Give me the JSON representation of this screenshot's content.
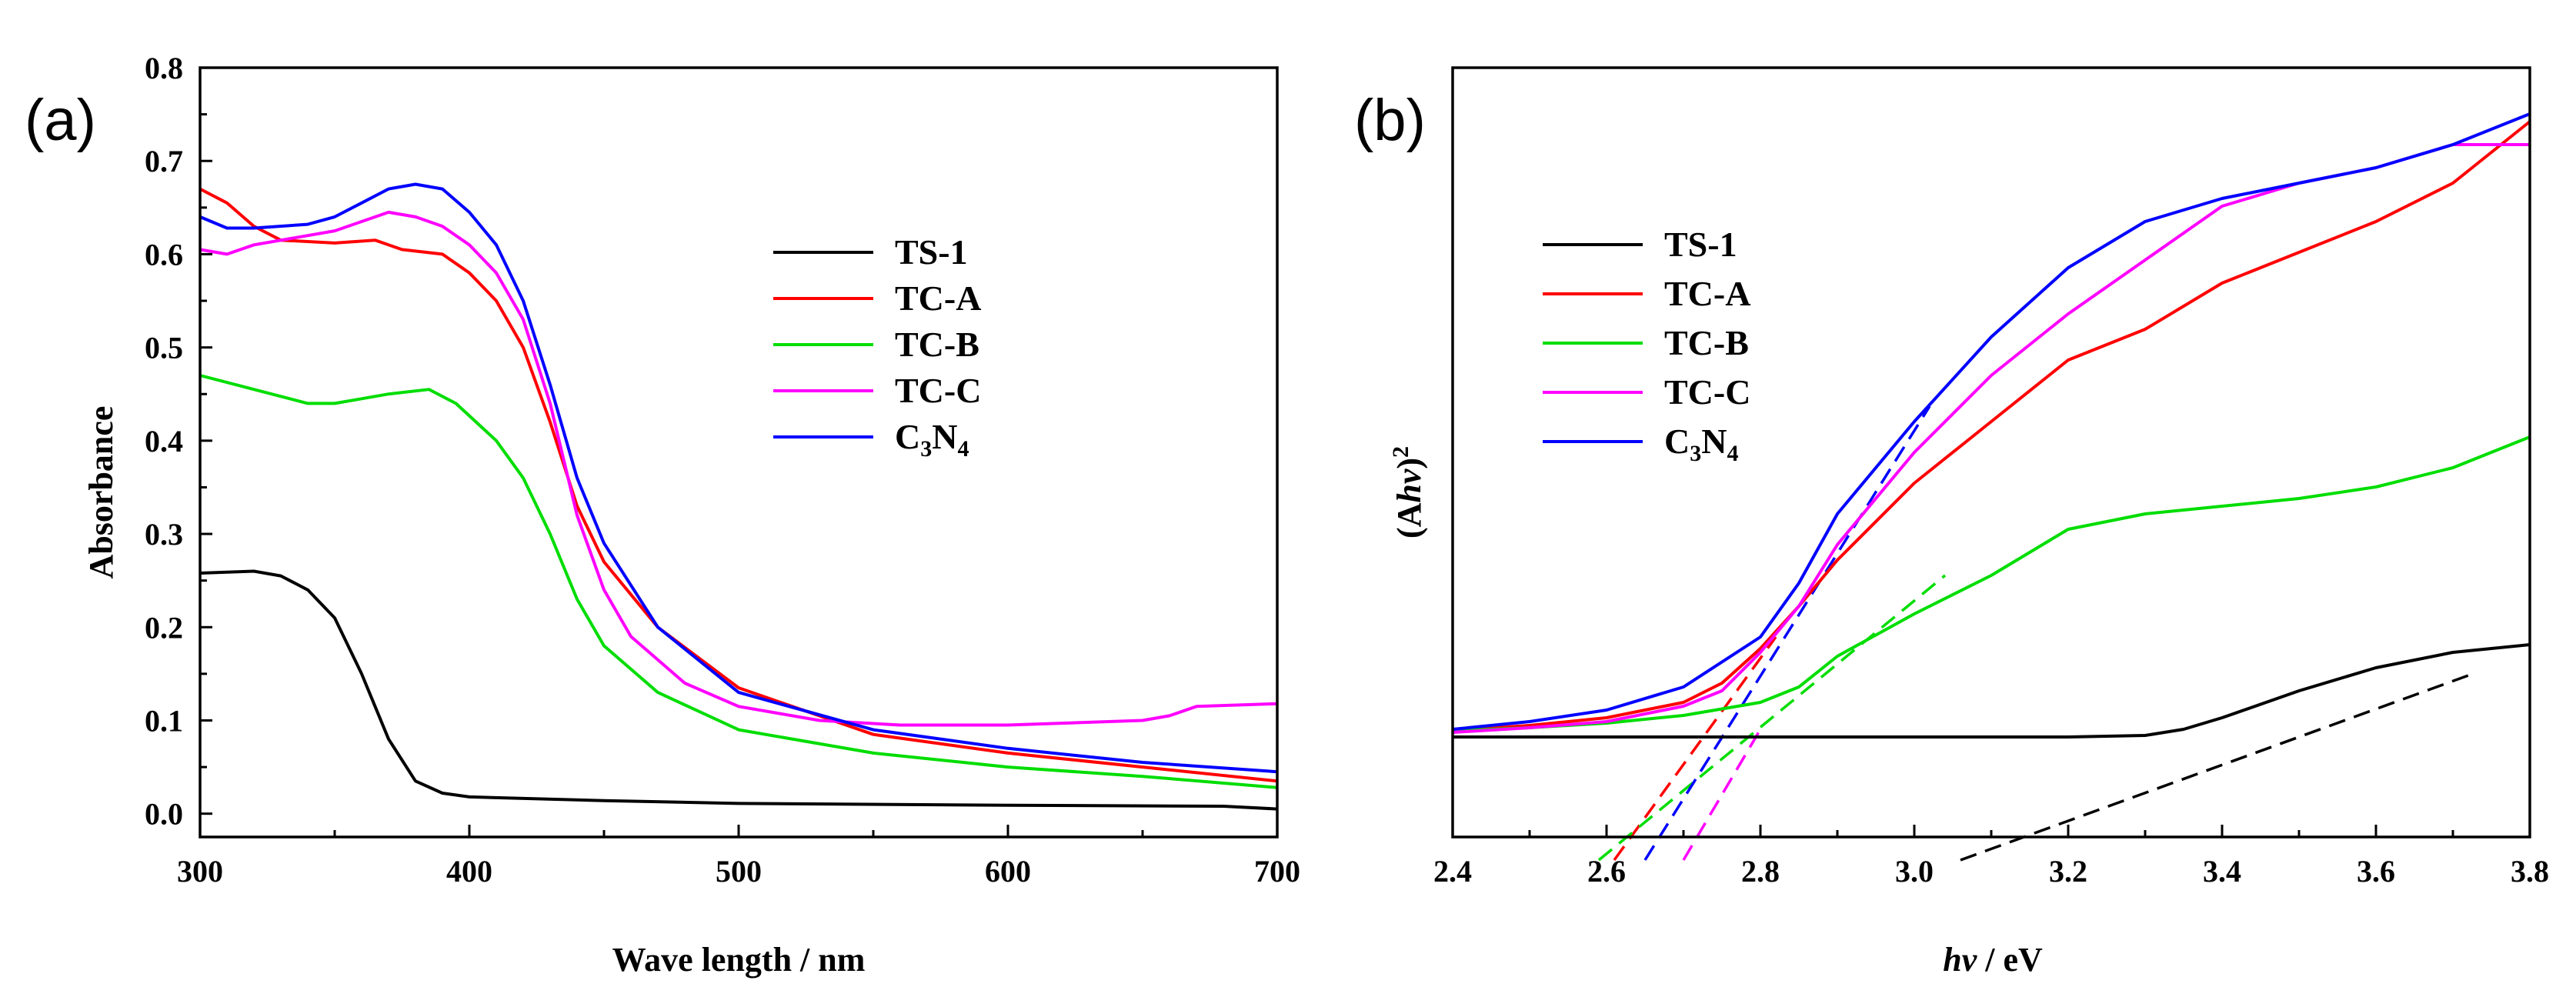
{
  "chart_data": [
    {
      "panel_label": "(a)",
      "type": "line",
      "title": "",
      "xlabel": "Wave length / nm",
      "ylabel": "Absorbance",
      "xlim": [
        300,
        700
      ],
      "ylim": [
        -0.025,
        0.8
      ],
      "xticks": [
        {
          "value": 300,
          "label": "300"
        },
        {
          "value": 400,
          "label": "400"
        },
        {
          "value": 500,
          "label": "500"
        },
        {
          "value": 600,
          "label": "600"
        },
        {
          "value": 700,
          "label": "700"
        }
      ],
      "yticks": [
        {
          "value": 0.0,
          "label": "0.0"
        },
        {
          "value": 0.1,
          "label": "0.1"
        },
        {
          "value": 0.2,
          "label": "0.2"
        },
        {
          "value": 0.3,
          "label": "0.3"
        },
        {
          "value": 0.4,
          "label": "0.4"
        },
        {
          "value": 0.5,
          "label": "0.5"
        },
        {
          "value": 0.6,
          "label": "0.6"
        },
        {
          "value": 0.7,
          "label": "0.7"
        },
        {
          "value": 0.8,
          "label": "0.8"
        }
      ],
      "legend": "center-right",
      "series": [
        {
          "name": "TS-1",
          "color": "#000000",
          "points": [
            [
              300,
              0.258
            ],
            [
              320,
              0.26
            ],
            [
              330,
              0.255
            ],
            [
              340,
              0.24
            ],
            [
              350,
              0.21
            ],
            [
              360,
              0.15
            ],
            [
              370,
              0.08
            ],
            [
              380,
              0.035
            ],
            [
              390,
              0.022
            ],
            [
              400,
              0.018
            ],
            [
              450,
              0.014
            ],
            [
              500,
              0.011
            ],
            [
              600,
              0.009
            ],
            [
              680,
              0.008
            ],
            [
              700,
              0.005
            ]
          ]
        },
        {
          "name": "TC-A",
          "color": "#ff0000",
          "points": [
            [
              300,
              0.67
            ],
            [
              310,
              0.655
            ],
            [
              320,
              0.63
            ],
            [
              330,
              0.615
            ],
            [
              350,
              0.612
            ],
            [
              365,
              0.615
            ],
            [
              375,
              0.605
            ],
            [
              390,
              0.6
            ],
            [
              400,
              0.58
            ],
            [
              410,
              0.55
            ],
            [
              420,
              0.5
            ],
            [
              430,
              0.42
            ],
            [
              440,
              0.33
            ],
            [
              450,
              0.27
            ],
            [
              470,
              0.2
            ],
            [
              500,
              0.135
            ],
            [
              550,
              0.085
            ],
            [
              600,
              0.065
            ],
            [
              650,
              0.05
            ],
            [
              700,
              0.035
            ]
          ]
        },
        {
          "name": "TC-B",
          "color": "#00dd00",
          "points": [
            [
              300,
              0.47
            ],
            [
              320,
              0.455
            ],
            [
              340,
              0.44
            ],
            [
              350,
              0.44
            ],
            [
              360,
              0.445
            ],
            [
              370,
              0.45
            ],
            [
              385,
              0.455
            ],
            [
              395,
              0.44
            ],
            [
              410,
              0.4
            ],
            [
              420,
              0.36
            ],
            [
              430,
              0.3
            ],
            [
              440,
              0.23
            ],
            [
              450,
              0.18
            ],
            [
              470,
              0.13
            ],
            [
              500,
              0.09
            ],
            [
              550,
              0.065
            ],
            [
              600,
              0.05
            ],
            [
              650,
              0.04
            ],
            [
              700,
              0.028
            ]
          ]
        },
        {
          "name": "TC-C",
          "color": "#ff00ff",
          "points": [
            [
              300,
              0.605
            ],
            [
              310,
              0.6
            ],
            [
              320,
              0.61
            ],
            [
              340,
              0.62
            ],
            [
              350,
              0.625
            ],
            [
              360,
              0.635
            ],
            [
              370,
              0.645
            ],
            [
              380,
              0.64
            ],
            [
              390,
              0.63
            ],
            [
              400,
              0.61
            ],
            [
              410,
              0.58
            ],
            [
              420,
              0.53
            ],
            [
              430,
              0.44
            ],
            [
              440,
              0.32
            ],
            [
              450,
              0.24
            ],
            [
              460,
              0.19
            ],
            [
              480,
              0.14
            ],
            [
              500,
              0.115
            ],
            [
              530,
              0.1
            ],
            [
              560,
              0.095
            ],
            [
              600,
              0.095
            ],
            [
              650,
              0.1
            ],
            [
              660,
              0.105
            ],
            [
              670,
              0.115
            ],
            [
              700,
              0.118
            ]
          ]
        },
        {
          "name": "C3N4",
          "color": "#0000ff",
          "points": [
            [
              300,
              0.64
            ],
            [
              310,
              0.628
            ],
            [
              320,
              0.628
            ],
            [
              340,
              0.632
            ],
            [
              350,
              0.64
            ],
            [
              360,
              0.655
            ],
            [
              370,
              0.67
            ],
            [
              380,
              0.675
            ],
            [
              390,
              0.67
            ],
            [
              400,
              0.645
            ],
            [
              410,
              0.61
            ],
            [
              420,
              0.55
            ],
            [
              430,
              0.46
            ],
            [
              440,
              0.36
            ],
            [
              450,
              0.29
            ],
            [
              470,
              0.2
            ],
            [
              500,
              0.13
            ],
            [
              550,
              0.09
            ],
            [
              600,
              0.07
            ],
            [
              650,
              0.055
            ],
            [
              700,
              0.045
            ]
          ]
        }
      ]
    },
    {
      "panel_label": "(b)",
      "type": "line",
      "title": "",
      "xlabel_parts": [
        "hv",
        " / eV"
      ],
      "ylabel_parts": [
        "(A",
        "hv",
        ")",
        "2"
      ],
      "xlim": [
        2.4,
        3.8
      ],
      "ylim": [
        0,
        1
      ],
      "yticks": [],
      "xticks": [
        {
          "value": 2.4,
          "label": "2.4"
        },
        {
          "value": 2.6,
          "label": "2.6"
        },
        {
          "value": 2.8,
          "label": "2.8"
        },
        {
          "value": 3.0,
          "label": "3.0"
        },
        {
          "value": 3.2,
          "label": "3.2"
        },
        {
          "value": 3.4,
          "label": "3.4"
        },
        {
          "value": 3.6,
          "label": "3.6"
        },
        {
          "value": 3.8,
          "label": "3.8"
        }
      ],
      "legend": "top-left",
      "series": [
        {
          "name": "TS-1",
          "color": "#000000",
          "points": [
            [
              2.4,
              0.13
            ],
            [
              3.2,
              0.13
            ],
            [
              3.3,
              0.132
            ],
            [
              3.35,
              0.14
            ],
            [
              3.4,
              0.155
            ],
            [
              3.5,
              0.19
            ],
            [
              3.6,
              0.22
            ],
            [
              3.7,
              0.24
            ],
            [
              3.8,
              0.25
            ]
          ]
        },
        {
          "name": "TC-A",
          "color": "#ff0000",
          "points": [
            [
              2.4,
              0.138
            ],
            [
              2.5,
              0.145
            ],
            [
              2.6,
              0.155
            ],
            [
              2.7,
              0.175
            ],
            [
              2.75,
              0.2
            ],
            [
              2.8,
              0.245
            ],
            [
              2.85,
              0.3
            ],
            [
              2.9,
              0.36
            ],
            [
              3.0,
              0.46
            ],
            [
              3.1,
              0.54
            ],
            [
              3.2,
              0.62
            ],
            [
              3.3,
              0.66
            ],
            [
              3.4,
              0.72
            ],
            [
              3.5,
              0.76
            ],
            [
              3.6,
              0.8
            ],
            [
              3.7,
              0.85
            ],
            [
              3.8,
              0.93
            ]
          ]
        },
        {
          "name": "TC-B",
          "color": "#00dd00",
          "points": [
            [
              2.4,
              0.138
            ],
            [
              2.5,
              0.142
            ],
            [
              2.6,
              0.148
            ],
            [
              2.7,
              0.158
            ],
            [
              2.8,
              0.175
            ],
            [
              2.85,
              0.195
            ],
            [
              2.9,
              0.235
            ],
            [
              3.0,
              0.29
            ],
            [
              3.1,
              0.34
            ],
            [
              3.2,
              0.4
            ],
            [
              3.3,
              0.42
            ],
            [
              3.4,
              0.43
            ],
            [
              3.5,
              0.44
            ],
            [
              3.6,
              0.455
            ],
            [
              3.7,
              0.48
            ],
            [
              3.8,
              0.52
            ]
          ]
        },
        {
          "name": "TC-C",
          "color": "#ff00ff",
          "points": [
            [
              2.4,
              0.136
            ],
            [
              2.5,
              0.142
            ],
            [
              2.6,
              0.15
            ],
            [
              2.7,
              0.17
            ],
            [
              2.75,
              0.19
            ],
            [
              2.8,
              0.24
            ],
            [
              2.85,
              0.3
            ],
            [
              2.9,
              0.38
            ],
            [
              3.0,
              0.5
            ],
            [
              3.1,
              0.6
            ],
            [
              3.2,
              0.68
            ],
            [
              3.3,
              0.75
            ],
            [
              3.4,
              0.82
            ],
            [
              3.5,
              0.85
            ],
            [
              3.6,
              0.87
            ],
            [
              3.7,
              0.9
            ],
            [
              3.8,
              0.9
            ]
          ]
        },
        {
          "name": "C3N4",
          "color": "#0000ff",
          "points": [
            [
              2.4,
              0.14
            ],
            [
              2.5,
              0.15
            ],
            [
              2.6,
              0.165
            ],
            [
              2.7,
              0.195
            ],
            [
              2.8,
              0.26
            ],
            [
              2.85,
              0.33
            ],
            [
              2.9,
              0.42
            ],
            [
              3.0,
              0.54
            ],
            [
              3.1,
              0.65
            ],
            [
              3.2,
              0.74
            ],
            [
              3.3,
              0.8
            ],
            [
              3.4,
              0.83
            ],
            [
              3.5,
              0.85
            ],
            [
              3.6,
              0.87
            ],
            [
              3.7,
              0.9
            ],
            [
              3.8,
              0.94
            ]
          ]
        }
      ],
      "tangent_lines": [
        {
          "series": "TS-1",
          "color": "#000000",
          "from": [
            3.06,
            -0.03
          ],
          "to": [
            3.72,
            0.21
          ]
        },
        {
          "series": "TC-A",
          "color": "#ff0000",
          "from": [
            2.61,
            -0.03
          ],
          "to": [
            2.82,
            0.26
          ]
        },
        {
          "series": "TC-B",
          "color": "#00dd00",
          "from": [
            2.59,
            -0.03
          ],
          "to": [
            3.04,
            0.34
          ]
        },
        {
          "series": "TC-C",
          "color": "#ff00ff",
          "from": [
            2.7,
            -0.03
          ],
          "to": [
            2.8,
            0.14
          ]
        },
        {
          "series": "C3N4",
          "color": "#0000ff",
          "from": [
            2.65,
            -0.03
          ],
          "to": [
            3.02,
            0.56
          ]
        }
      ]
    }
  ]
}
